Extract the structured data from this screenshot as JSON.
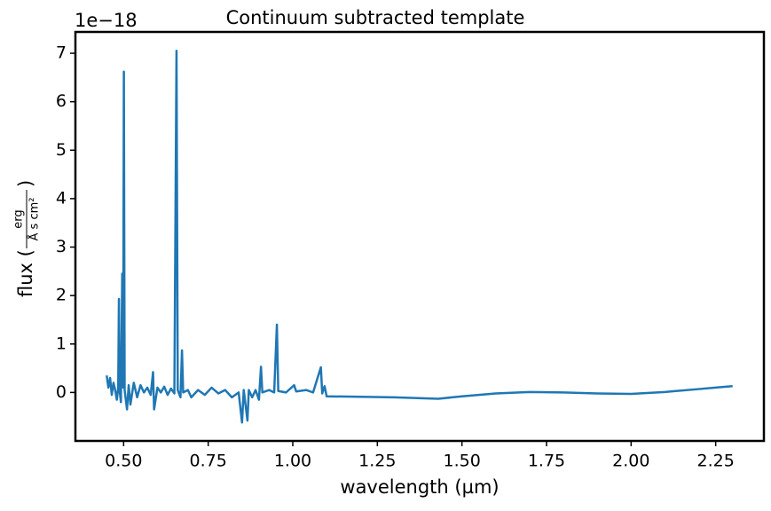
{
  "chart_data": {
    "type": "line",
    "title": "Continuum subtracted template",
    "xlabel": "wavelength (µm)",
    "ylabel": {
      "prefix": "flux (",
      "numerator": "erg",
      "denominator": "Å s cm²",
      "suffix": ")"
    },
    "offset_label": "1e−18",
    "color": "#1f77b4",
    "x": [
      0.45,
      0.455,
      0.46,
      0.465,
      0.47,
      0.475,
      0.48,
      0.484,
      0.4861,
      0.488,
      0.492,
      0.4959,
      0.4985,
      0.5007,
      0.503,
      0.51,
      0.515,
      0.52,
      0.53,
      0.54,
      0.55,
      0.56,
      0.57,
      0.58,
      0.587,
      0.59,
      0.6,
      0.61,
      0.62,
      0.63,
      0.64,
      0.65,
      0.6563,
      0.66,
      0.668,
      0.6725,
      0.676,
      0.69,
      0.7,
      0.72,
      0.74,
      0.76,
      0.78,
      0.8,
      0.82,
      0.84,
      0.85,
      0.855,
      0.866,
      0.87,
      0.88,
      0.89,
      0.9,
      0.906,
      0.91,
      0.93,
      0.945,
      0.953,
      0.957,
      0.98,
      1.004,
      1.01,
      1.04,
      1.06,
      1.083,
      1.087,
      1.094,
      1.1,
      1.2,
      1.3,
      1.43,
      1.5,
      1.6,
      1.7,
      1.8,
      1.9,
      2.0,
      2.1,
      2.2,
      2.25,
      2.3
    ],
    "values": [
      0.35,
      0.1,
      0.3,
      -0.05,
      0.2,
      0.05,
      -0.15,
      0.1,
      1.93,
      0.05,
      -0.2,
      2.45,
      0.1,
      6.62,
      0.05,
      -0.35,
      0.15,
      -0.25,
      0.2,
      -0.1,
      0.15,
      0.0,
      0.1,
      -0.05,
      0.42,
      -0.35,
      0.1,
      0.0,
      0.12,
      -0.05,
      0.08,
      -0.02,
      7.05,
      0.05,
      -0.1,
      0.87,
      0.0,
      0.05,
      -0.1,
      0.05,
      -0.05,
      0.1,
      -0.02,
      0.05,
      -0.1,
      0.0,
      -0.62,
      0.05,
      -0.58,
      0.05,
      -0.1,
      0.05,
      -0.15,
      0.53,
      0.0,
      0.05,
      0.0,
      1.4,
      0.03,
      0.0,
      0.15,
      0.02,
      0.05,
      0.0,
      0.52,
      -0.02,
      0.13,
      -0.08,
      -0.09,
      -0.1,
      -0.13,
      -0.08,
      -0.02,
      0.01,
      0.0,
      -0.02,
      -0.03,
      0.01,
      0.07,
      0.1,
      0.13
    ],
    "xlim": [
      0.3575,
      2.3925
    ],
    "ylim": [
      -1.0,
      7.44
    ],
    "xticks": [
      {
        "value": 0.5,
        "label": "0.50"
      },
      {
        "value": 0.75,
        "label": "0.75"
      },
      {
        "value": 1.0,
        "label": "1.00"
      },
      {
        "value": 1.25,
        "label": "1.25"
      },
      {
        "value": 1.5,
        "label": "1.50"
      },
      {
        "value": 1.75,
        "label": "1.75"
      },
      {
        "value": 2.0,
        "label": "2.00"
      },
      {
        "value": 2.25,
        "label": "2.25"
      }
    ],
    "yticks": [
      0,
      1,
      2,
      3,
      4,
      5,
      6,
      7
    ]
  }
}
